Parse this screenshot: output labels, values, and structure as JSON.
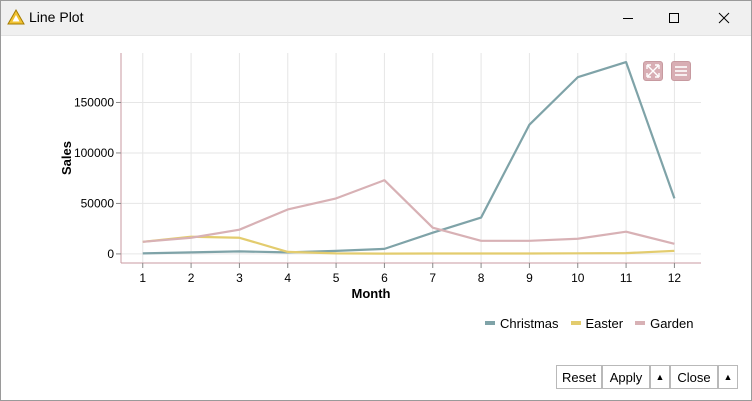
{
  "window": {
    "title": "Line Plot",
    "icon": "warning-triangle-icon",
    "controls": [
      "minimize-icon",
      "maximize-icon",
      "close-icon"
    ]
  },
  "chart_data": {
    "type": "line",
    "xlabel": "Month",
    "ylabel": "Sales",
    "x": [
      1,
      2,
      3,
      4,
      5,
      6,
      7,
      8,
      9,
      10,
      11,
      12
    ],
    "x_ticks": [
      "1",
      "2",
      "3",
      "4",
      "5",
      "6",
      "7",
      "8",
      "9",
      "10",
      "11",
      "12"
    ],
    "y_ticks": [
      {
        "value": 0,
        "label": "0"
      },
      {
        "value": 50000,
        "label": "50000"
      },
      {
        "value": 100000,
        "label": "100000"
      },
      {
        "value": 150000,
        "label": "150000"
      }
    ],
    "xlim": [
      0.55,
      12.55
    ],
    "ylim": [
      -9000,
      199000
    ],
    "grid": true,
    "legend_position": "bottom-right",
    "series": [
      {
        "name": "Christmas",
        "color": "#7fa3a8",
        "values": [
          500,
          1500,
          2500,
          1500,
          3000,
          5000,
          21000,
          36000,
          128000,
          175000,
          190000,
          55000
        ]
      },
      {
        "name": "Easter",
        "color": "#e3cc6e",
        "values": [
          12000,
          17000,
          16000,
          2000,
          500,
          300,
          400,
          400,
          400,
          600,
          800,
          3000
        ]
      },
      {
        "name": "Garden",
        "color": "#d8b1b5",
        "values": [
          12000,
          16000,
          24000,
          44000,
          55000,
          73000,
          26000,
          13000,
          13000,
          15000,
          22000,
          10000
        ]
      }
    ]
  },
  "toolbar_icons": [
    "fullscreen-icon",
    "menu-icon"
  ],
  "footer": {
    "reset_label": "Reset",
    "apply_label": "Apply",
    "apply_menu_arrow": "▲",
    "close_label": "Close",
    "close_menu_arrow": "▲"
  }
}
